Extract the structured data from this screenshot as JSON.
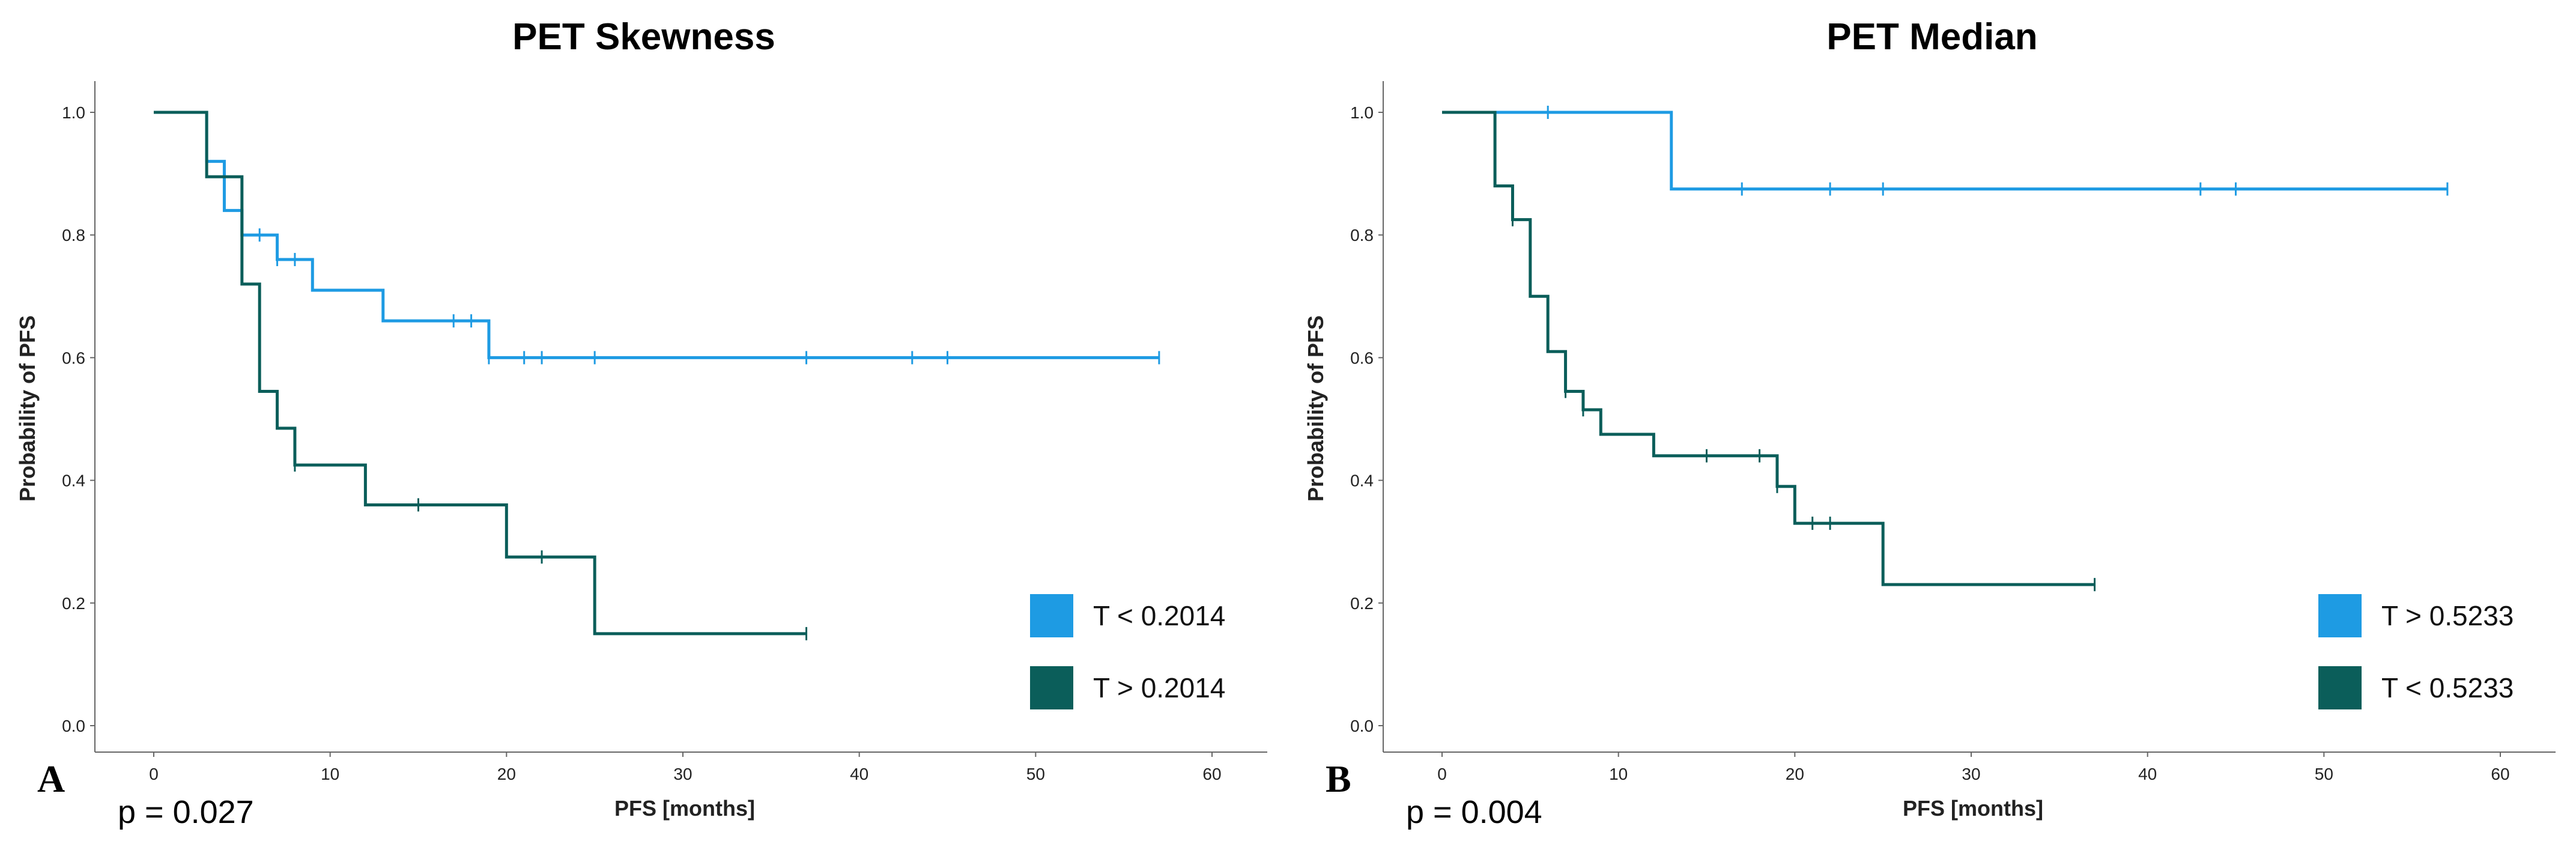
{
  "chart_data": [
    {
      "type": "line",
      "subtype": "kaplan-meier",
      "panel_label": "A",
      "title": "PET Skewness",
      "xlabel": "PFS [months]",
      "ylabel": "Probability of PFS",
      "xlim": [
        0,
        60
      ],
      "ylim": [
        0,
        1
      ],
      "xticks": [
        "0",
        "10",
        "20",
        "30",
        "40",
        "50",
        "60"
      ],
      "yticks": [
        "0.0",
        "0.2",
        "0.4",
        "0.6",
        "0.8",
        "1.0"
      ],
      "p_value": "p = 0.027",
      "legend_position": "bottom-right",
      "series": [
        {
          "name": "T < 0.2014",
          "color": "#1e9be3",
          "steps": [
            [
              0,
              1.0
            ],
            [
              3,
              0.92
            ],
            [
              4,
              0.84
            ],
            [
              5,
              0.8
            ],
            [
              7,
              0.76
            ],
            [
              9,
              0.71
            ],
            [
              13,
              0.66
            ],
            [
              19,
              0.6
            ],
            [
              57,
              0.6
            ]
          ],
          "censors": [
            [
              6,
              0.8
            ],
            [
              7,
              0.76
            ],
            [
              8,
              0.76
            ],
            [
              17,
              0.66
            ],
            [
              18,
              0.66
            ],
            [
              19,
              0.6
            ],
            [
              21,
              0.6
            ],
            [
              22,
              0.6
            ],
            [
              25,
              0.6
            ],
            [
              37,
              0.6
            ],
            [
              43,
              0.6
            ],
            [
              45,
              0.6
            ],
            [
              57,
              0.6
            ]
          ]
        },
        {
          "name": "T > 0.2014",
          "color": "#0b5e5a",
          "steps": [
            [
              0,
              1.0
            ],
            [
              3,
              0.895
            ],
            [
              5,
              0.72
            ],
            [
              6,
              0.545
            ],
            [
              7,
              0.485
            ],
            [
              8,
              0.425
            ],
            [
              12,
              0.36
            ],
            [
              20,
              0.275
            ],
            [
              25,
              0.15
            ],
            [
              37,
              0.15
            ]
          ],
          "censors": [
            [
              8,
              0.425
            ],
            [
              15,
              0.36
            ],
            [
              22,
              0.275
            ],
            [
              37,
              0.15
            ]
          ]
        }
      ]
    },
    {
      "type": "line",
      "subtype": "kaplan-meier",
      "panel_label": "B",
      "title": "PET Median",
      "xlabel": "PFS [months]",
      "ylabel": "Probability of PFS",
      "xlim": [
        0,
        60
      ],
      "ylim": [
        0,
        1
      ],
      "xticks": [
        "0",
        "10",
        "20",
        "30",
        "40",
        "50",
        "60"
      ],
      "yticks": [
        "0.0",
        "0.2",
        "0.4",
        "0.6",
        "0.8",
        "1.0"
      ],
      "p_value": "p = 0.004",
      "legend_position": "bottom-right",
      "series": [
        {
          "name": "T > 0.5233",
          "color": "#1e9be3",
          "steps": [
            [
              0,
              1.0
            ],
            [
              13,
              0.875
            ],
            [
              57,
              0.875
            ]
          ],
          "censors": [
            [
              6,
              1.0
            ],
            [
              17,
              0.875
            ],
            [
              22,
              0.875
            ],
            [
              25,
              0.875
            ],
            [
              43,
              0.875
            ],
            [
              45,
              0.875
            ],
            [
              57,
              0.875
            ]
          ]
        },
        {
          "name": "T < 0.5233",
          "color": "#0b5e5a",
          "steps": [
            [
              0,
              1.0
            ],
            [
              3,
              0.88
            ],
            [
              4,
              0.825
            ],
            [
              5,
              0.7
            ],
            [
              6,
              0.61
            ],
            [
              7,
              0.545
            ],
            [
              8,
              0.515
            ],
            [
              9,
              0.475
            ],
            [
              12,
              0.44
            ],
            [
              19,
              0.39
            ],
            [
              20,
              0.33
            ],
            [
              25,
              0.23
            ],
            [
              37,
              0.23
            ]
          ],
          "censors": [
            [
              4,
              0.825
            ],
            [
              7,
              0.545
            ],
            [
              8,
              0.515
            ],
            [
              15,
              0.44
            ],
            [
              18,
              0.44
            ],
            [
              19,
              0.39
            ],
            [
              21,
              0.33
            ],
            [
              22,
              0.33
            ],
            [
              37,
              0.23
            ]
          ]
        }
      ]
    }
  ]
}
